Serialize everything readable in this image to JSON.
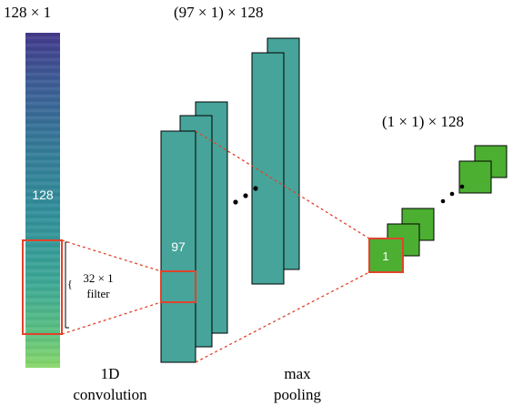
{
  "labels": {
    "input_shape": "128 × 1",
    "conv_shape": "(97 × 1) × 128",
    "pool_shape": "(1 × 1) × 128",
    "input_length": "128",
    "conv_length": "97",
    "pool_length": "1",
    "filter_line1": "32 × 1",
    "filter_line2": "filter",
    "conv_caption_line1": "1D",
    "conv_caption_line2": "convolution",
    "pool_caption_line1": "max",
    "pool_caption_line2": "pooling"
  },
  "colors": {
    "conv_fill": "#46a49a",
    "pool_fill": "#4caf32",
    "highlight": "#e0432c",
    "gradient_top": "#433a8a",
    "gradient_mid": "#35819a",
    "gradient_bottom": "#7bd26a"
  }
}
